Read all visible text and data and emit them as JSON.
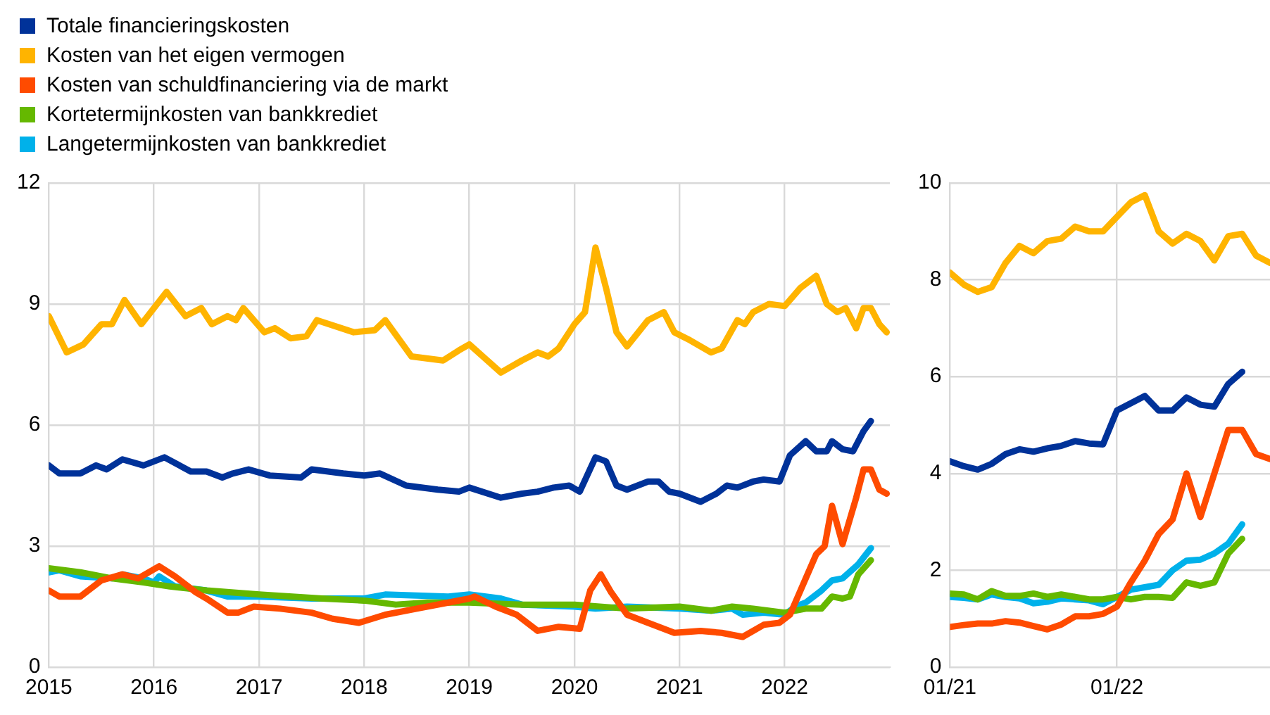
{
  "chart_data": [
    {
      "type": "line",
      "xlim": [
        2015,
        2023
      ],
      "xticks": [
        2015,
        2016,
        2017,
        2018,
        2019,
        2020,
        2021,
        2022
      ],
      "ylim": [
        0,
        12
      ],
      "yticks": [
        0,
        3,
        6,
        9,
        12
      ],
      "grid": true,
      "legend": "top left",
      "series": [
        {
          "name": "Totale financieringskosten",
          "color": "#003299",
          "x": [
            2015,
            2015.1,
            2015.3,
            2015.45,
            2015.55,
            2015.7,
            2015.9,
            2016.1,
            2016.35,
            2016.5,
            2016.65,
            2016.75,
            2016.9,
            2017.1,
            2017.4,
            2017.5,
            2017.8,
            2018,
            2018.15,
            2018.4,
            2018.7,
            2018.9,
            2019,
            2019.3,
            2019.5,
            2019.65,
            2019.8,
            2019.95,
            2020.05,
            2020.2,
            2020.3,
            2020.4,
            2020.5,
            2020.7,
            2020.8,
            2020.9,
            2021,
            2021.2,
            2021.35,
            2021.45,
            2021.55,
            2021.7,
            2021.8,
            2021.95,
            2022.05,
            2022.2,
            2022.3,
            2022.4,
            2022.45,
            2022.55,
            2022.65,
            2022.75,
            2022.82
          ],
          "values": [
            5.0,
            4.8,
            4.8,
            5.0,
            4.9,
            5.15,
            5.0,
            5.2,
            4.85,
            4.85,
            4.7,
            4.8,
            4.9,
            4.75,
            4.7,
            4.9,
            4.8,
            4.75,
            4.8,
            4.5,
            4.4,
            4.35,
            4.45,
            4.2,
            4.3,
            4.35,
            4.45,
            4.5,
            4.35,
            5.2,
            5.1,
            4.5,
            4.4,
            4.6,
            4.6,
            4.35,
            4.3,
            4.1,
            4.3,
            4.5,
            4.45,
            4.6,
            4.65,
            4.6,
            5.25,
            5.6,
            5.35,
            5.35,
            5.6,
            5.4,
            5.35,
            5.85,
            6.1
          ]
        },
        {
          "name": "Kosten van het eigen vermogen",
          "color": "#ffb400",
          "x": [
            2015,
            2015.17,
            2015.33,
            2015.5,
            2015.6,
            2015.72,
            2015.88,
            2016.12,
            2016.3,
            2016.45,
            2016.55,
            2016.7,
            2016.78,
            2016.85,
            2017.05,
            2017.15,
            2017.3,
            2017.45,
            2017.55,
            2017.9,
            2018.1,
            2018.2,
            2018.45,
            2018.75,
            2018.9,
            2019,
            2019.3,
            2019.5,
            2019.65,
            2019.75,
            2019.85,
            2020,
            2020.1,
            2020.2,
            2020.3,
            2020.4,
            2020.5,
            2020.7,
            2020.85,
            2020.95,
            2021.1,
            2021.3,
            2021.4,
            2021.55,
            2021.62,
            2021.7,
            2021.85,
            2022,
            2022.15,
            2022.3,
            2022.4,
            2022.5,
            2022.58,
            2022.68,
            2022.75,
            2022.82,
            2022.9,
            2022.97
          ],
          "values": [
            8.7,
            7.8,
            8.0,
            8.5,
            8.5,
            9.1,
            8.5,
            9.3,
            8.7,
            8.9,
            8.5,
            8.7,
            8.6,
            8.9,
            8.3,
            8.4,
            8.15,
            8.2,
            8.6,
            8.3,
            8.35,
            8.6,
            7.7,
            7.6,
            7.85,
            8.0,
            7.3,
            7.6,
            7.8,
            7.7,
            7.9,
            8.5,
            8.8,
            10.4,
            9.4,
            8.3,
            7.95,
            8.6,
            8.8,
            8.3,
            8.1,
            7.8,
            7.9,
            8.6,
            8.5,
            8.8,
            9.0,
            8.95,
            9.4,
            9.7,
            9.0,
            8.8,
            8.9,
            8.4,
            8.9,
            8.9,
            8.5,
            8.3
          ]
        },
        {
          "name": "Kosten van schuldfinanciering via de markt",
          "color": "#ff4b00",
          "x": [
            2015,
            2015.1,
            2015.3,
            2015.5,
            2015.7,
            2015.85,
            2016.05,
            2016.2,
            2016.4,
            2016.5,
            2016.7,
            2016.8,
            2016.95,
            2017.2,
            2017.5,
            2017.7,
            2017.95,
            2018.2,
            2018.5,
            2018.8,
            2019,
            2019.05,
            2019.25,
            2019.45,
            2019.65,
            2019.85,
            2020.05,
            2020.15,
            2020.25,
            2020.35,
            2020.5,
            2020.7,
            2020.95,
            2021.2,
            2021.4,
            2021.6,
            2021.8,
            2021.95,
            2022.05,
            2022.2,
            2022.3,
            2022.38,
            2022.45,
            2022.55,
            2022.68,
            2022.75,
            2022.82,
            2022.9,
            2022.97
          ],
          "values": [
            1.9,
            1.75,
            1.75,
            2.15,
            2.3,
            2.2,
            2.5,
            2.25,
            1.85,
            1.7,
            1.35,
            1.35,
            1.5,
            1.45,
            1.35,
            1.2,
            1.1,
            1.3,
            1.45,
            1.6,
            1.7,
            1.75,
            1.5,
            1.3,
            0.9,
            1.0,
            0.95,
            1.9,
            2.3,
            1.85,
            1.3,
            1.1,
            0.85,
            0.9,
            0.85,
            0.75,
            1.05,
            1.1,
            1.3,
            2.2,
            2.8,
            3.0,
            4.0,
            3.05,
            4.2,
            4.9,
            4.9,
            4.4,
            4.3
          ]
        },
        {
          "name": "Kortetermijnkosten van bankkrediet",
          "color": "#65b800",
          "x": [
            2015,
            2015.3,
            2015.6,
            2015.9,
            2016.15,
            2016.5,
            2017,
            2017.6,
            2018,
            2018.3,
            2018.6,
            2019,
            2019.5,
            2020,
            2020.5,
            2021,
            2021.3,
            2021.5,
            2021.7,
            2022,
            2022.2,
            2022.35,
            2022.45,
            2022.55,
            2022.62,
            2022.7,
            2022.82
          ],
          "values": [
            2.45,
            2.35,
            2.2,
            2.1,
            2.0,
            1.9,
            1.8,
            1.7,
            1.65,
            1.55,
            1.6,
            1.6,
            1.55,
            1.55,
            1.45,
            1.5,
            1.4,
            1.5,
            1.45,
            1.35,
            1.45,
            1.45,
            1.75,
            1.7,
            1.75,
            2.3,
            2.65
          ]
        },
        {
          "name": "Langetermijnkosten van bankkrediet",
          "color": "#00b1ea",
          "x": [
            2015,
            2015.1,
            2015.3,
            2015.6,
            2015.7,
            2015.9,
            2016,
            2016.05,
            2016.2,
            2016.5,
            2016.7,
            2017,
            2017.5,
            2018,
            2018.2,
            2018.8,
            2019,
            2019.3,
            2019.5,
            2020,
            2020.2,
            2020.5,
            2021,
            2021.3,
            2021.5,
            2021.6,
            2021.8,
            2022,
            2022.1,
            2022.2,
            2022.35,
            2022.45,
            2022.55,
            2022.7,
            2022.82
          ],
          "values": [
            2.35,
            2.4,
            2.25,
            2.2,
            2.3,
            2.2,
            2.1,
            2.25,
            2.0,
            1.9,
            1.75,
            1.75,
            1.7,
            1.7,
            1.8,
            1.75,
            1.8,
            1.7,
            1.55,
            1.5,
            1.45,
            1.5,
            1.45,
            1.4,
            1.45,
            1.3,
            1.35,
            1.3,
            1.5,
            1.6,
            1.9,
            2.15,
            2.2,
            2.55,
            2.95
          ]
        }
      ]
    },
    {
      "type": "line",
      "xlim": [
        "2021-01",
        "2022-12"
      ],
      "xticks": [
        {
          "value": "2021-01",
          "label": "01/21"
        },
        {
          "value": "2022-01",
          "label": "01/22"
        }
      ],
      "ylim": [
        0,
        10
      ],
      "yticks": [
        0,
        2,
        4,
        6,
        8,
        10
      ],
      "grid": true,
      "series": [
        {
          "color": "#003299",
          "x": [
            "2021-01",
            "2021-02",
            "2021-03",
            "2021-04",
            "2021-05",
            "2021-06",
            "2021-07",
            "2021-08",
            "2021-09",
            "2021-10",
            "2021-11",
            "2021-12",
            "2022-01",
            "2022-02",
            "2022-03",
            "2022-04",
            "2022-05",
            "2022-06",
            "2022-07",
            "2022-08",
            "2022-09",
            "2022-10"
          ],
          "values": [
            4.25,
            4.15,
            4.08,
            4.2,
            4.4,
            4.5,
            4.45,
            4.52,
            4.57,
            4.67,
            4.62,
            4.6,
            5.3,
            5.45,
            5.6,
            5.3,
            5.3,
            5.57,
            5.42,
            5.38,
            5.85,
            6.1
          ]
        },
        {
          "color": "#ffb400",
          "x": [
            "2021-01",
            "2021-02",
            "2021-03",
            "2021-04",
            "2021-05",
            "2021-06",
            "2021-07",
            "2021-08",
            "2021-09",
            "2021-10",
            "2021-11",
            "2021-12",
            "2022-01",
            "2022-02",
            "2022-03",
            "2022-04",
            "2022-05",
            "2022-06",
            "2022-07",
            "2022-08",
            "2022-09",
            "2022-10",
            "2022-11",
            "2022-12"
          ],
          "values": [
            8.15,
            7.9,
            7.75,
            7.85,
            8.35,
            8.7,
            8.55,
            8.8,
            8.85,
            9.1,
            9.0,
            9.0,
            9.3,
            9.6,
            9.75,
            9.0,
            8.75,
            8.95,
            8.8,
            8.4,
            8.9,
            8.95,
            8.5,
            8.35
          ]
        },
        {
          "color": "#ff4b00",
          "x": [
            "2021-01",
            "2021-02",
            "2021-03",
            "2021-04",
            "2021-05",
            "2021-06",
            "2021-07",
            "2021-08",
            "2021-09",
            "2021-10",
            "2021-11",
            "2021-12",
            "2022-01",
            "2022-02",
            "2022-03",
            "2022-04",
            "2022-05",
            "2022-06",
            "2022-07",
            "2022-08",
            "2022-09",
            "2022-10",
            "2022-11",
            "2022-12"
          ],
          "values": [
            0.83,
            0.87,
            0.9,
            0.9,
            0.95,
            0.92,
            0.85,
            0.78,
            0.88,
            1.05,
            1.05,
            1.1,
            1.25,
            1.75,
            2.2,
            2.75,
            3.05,
            4.0,
            3.1,
            4.0,
            4.9,
            4.9,
            4.4,
            4.3
          ]
        },
        {
          "color": "#65b800",
          "x": [
            "2021-01",
            "2021-02",
            "2021-03",
            "2021-04",
            "2021-05",
            "2021-06",
            "2021-07",
            "2021-08",
            "2021-09",
            "2021-10",
            "2021-11",
            "2021-12",
            "2022-01",
            "2022-02",
            "2022-03",
            "2022-04",
            "2022-05",
            "2022-06",
            "2022-07",
            "2022-08",
            "2022-09",
            "2022-10"
          ],
          "values": [
            1.52,
            1.5,
            1.4,
            1.57,
            1.47,
            1.47,
            1.52,
            1.45,
            1.5,
            1.45,
            1.4,
            1.4,
            1.45,
            1.4,
            1.45,
            1.45,
            1.43,
            1.75,
            1.68,
            1.75,
            2.35,
            2.65
          ]
        },
        {
          "color": "#00b1ea",
          "x": [
            "2021-01",
            "2021-02",
            "2021-03",
            "2021-04",
            "2021-05",
            "2021-06",
            "2021-07",
            "2021-08",
            "2021-09",
            "2021-10",
            "2021-11",
            "2021-12",
            "2022-01",
            "2022-02",
            "2022-03",
            "2022-04",
            "2022-05",
            "2022-06",
            "2022-07",
            "2022-08",
            "2022-09",
            "2022-10"
          ],
          "values": [
            1.45,
            1.43,
            1.4,
            1.5,
            1.45,
            1.42,
            1.32,
            1.35,
            1.42,
            1.4,
            1.38,
            1.3,
            1.45,
            1.6,
            1.65,
            1.7,
            2.0,
            2.2,
            2.22,
            2.35,
            2.55,
            2.95
          ]
        }
      ]
    }
  ]
}
